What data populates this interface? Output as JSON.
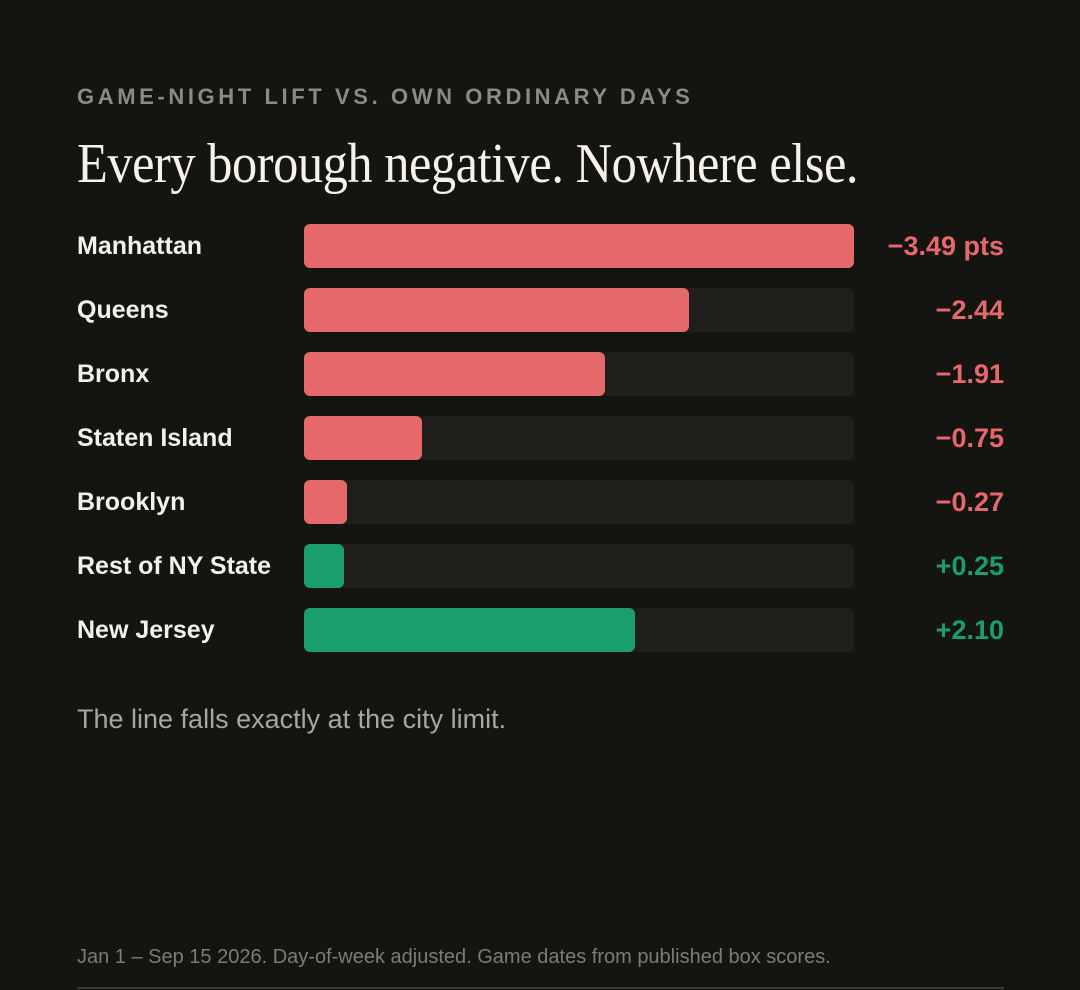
{
  "eyebrow": "GAME-NIGHT LIFT VS. OWN ORDINARY DAYS",
  "headline": "Every borough negative. Nowhere else.",
  "caption": "The line falls exactly at the city limit.",
  "footnote": "Jan 1 – Sep 15 2026. Day-of-week adjusted. Game dates from published box scores.",
  "colors": {
    "negative": "#e5686a",
    "positive": "#1a9e6e",
    "track": "#1f1e1b",
    "background": "#141411"
  },
  "chart_data": {
    "type": "bar",
    "orientation": "horizontal",
    "title": "Every borough negative. Nowhere else.",
    "subtitle": "GAME-NIGHT LIFT VS. OWN ORDINARY DAYS",
    "unit": "pts",
    "scale_max_abs": 3.49,
    "categories": [
      "Manhattan",
      "Queens",
      "Bronx",
      "Staten Island",
      "Brooklyn",
      "Rest of NY State",
      "New Jersey"
    ],
    "values": [
      -3.49,
      -2.44,
      -1.91,
      -0.75,
      -0.27,
      0.25,
      2.1
    ],
    "labels": [
      "−3.49 pts",
      "−2.44",
      "−1.91",
      "−0.75",
      "−0.27",
      "+0.25",
      "+2.10"
    ],
    "grid": false,
    "legend": "none"
  }
}
